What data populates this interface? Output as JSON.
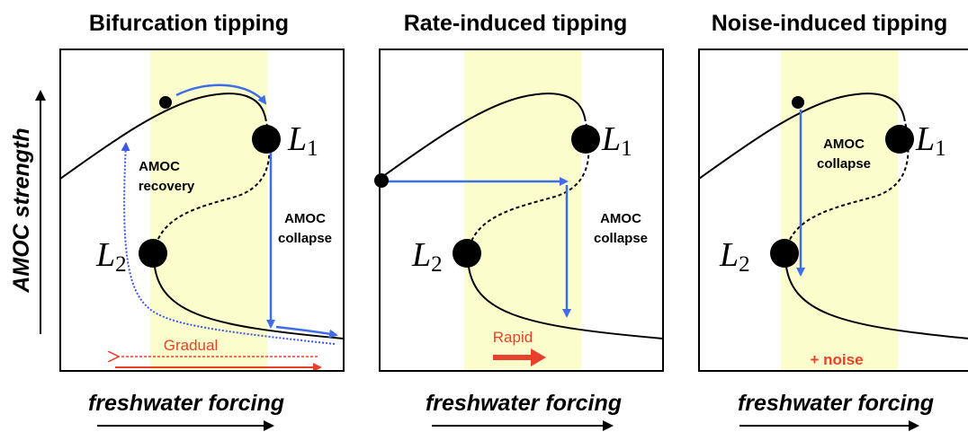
{
  "figure": {
    "y_axis_label": "AMOC strength",
    "colors": {
      "band": "#fcfdcc",
      "blue": "#3e6ee6",
      "red": "#e8412b",
      "black": "#000000"
    },
    "panels": [
      {
        "title": "Bifurcation tipping",
        "x_axis_label": "freshwater forcing",
        "point_upper": {
          "name": "L",
          "sub": "1"
        },
        "point_lower": {
          "name": "L",
          "sub": "2"
        },
        "ann_recovery_1": "AMOC",
        "ann_recovery_2": "recovery",
        "ann_collapse_1": "AMOC",
        "ann_collapse_2": "collapse",
        "ann_red": "Gradual"
      },
      {
        "title": "Rate-induced tipping",
        "x_axis_label": "freshwater forcing",
        "point_upper": {
          "name": "L",
          "sub": "1"
        },
        "point_lower": {
          "name": "L",
          "sub": "2"
        },
        "ann_collapse_1": "AMOC",
        "ann_collapse_2": "collapse",
        "ann_red": "Rapid"
      },
      {
        "title": "Noise-induced tipping",
        "x_axis_label": "freshwater forcing",
        "point_upper": {
          "name": "L",
          "sub": "1"
        },
        "point_lower": {
          "name": "L",
          "sub": "2"
        },
        "ann_collapse_1": "AMOC",
        "ann_collapse_2": "collapse",
        "ann_red": "+ noise"
      }
    ]
  }
}
